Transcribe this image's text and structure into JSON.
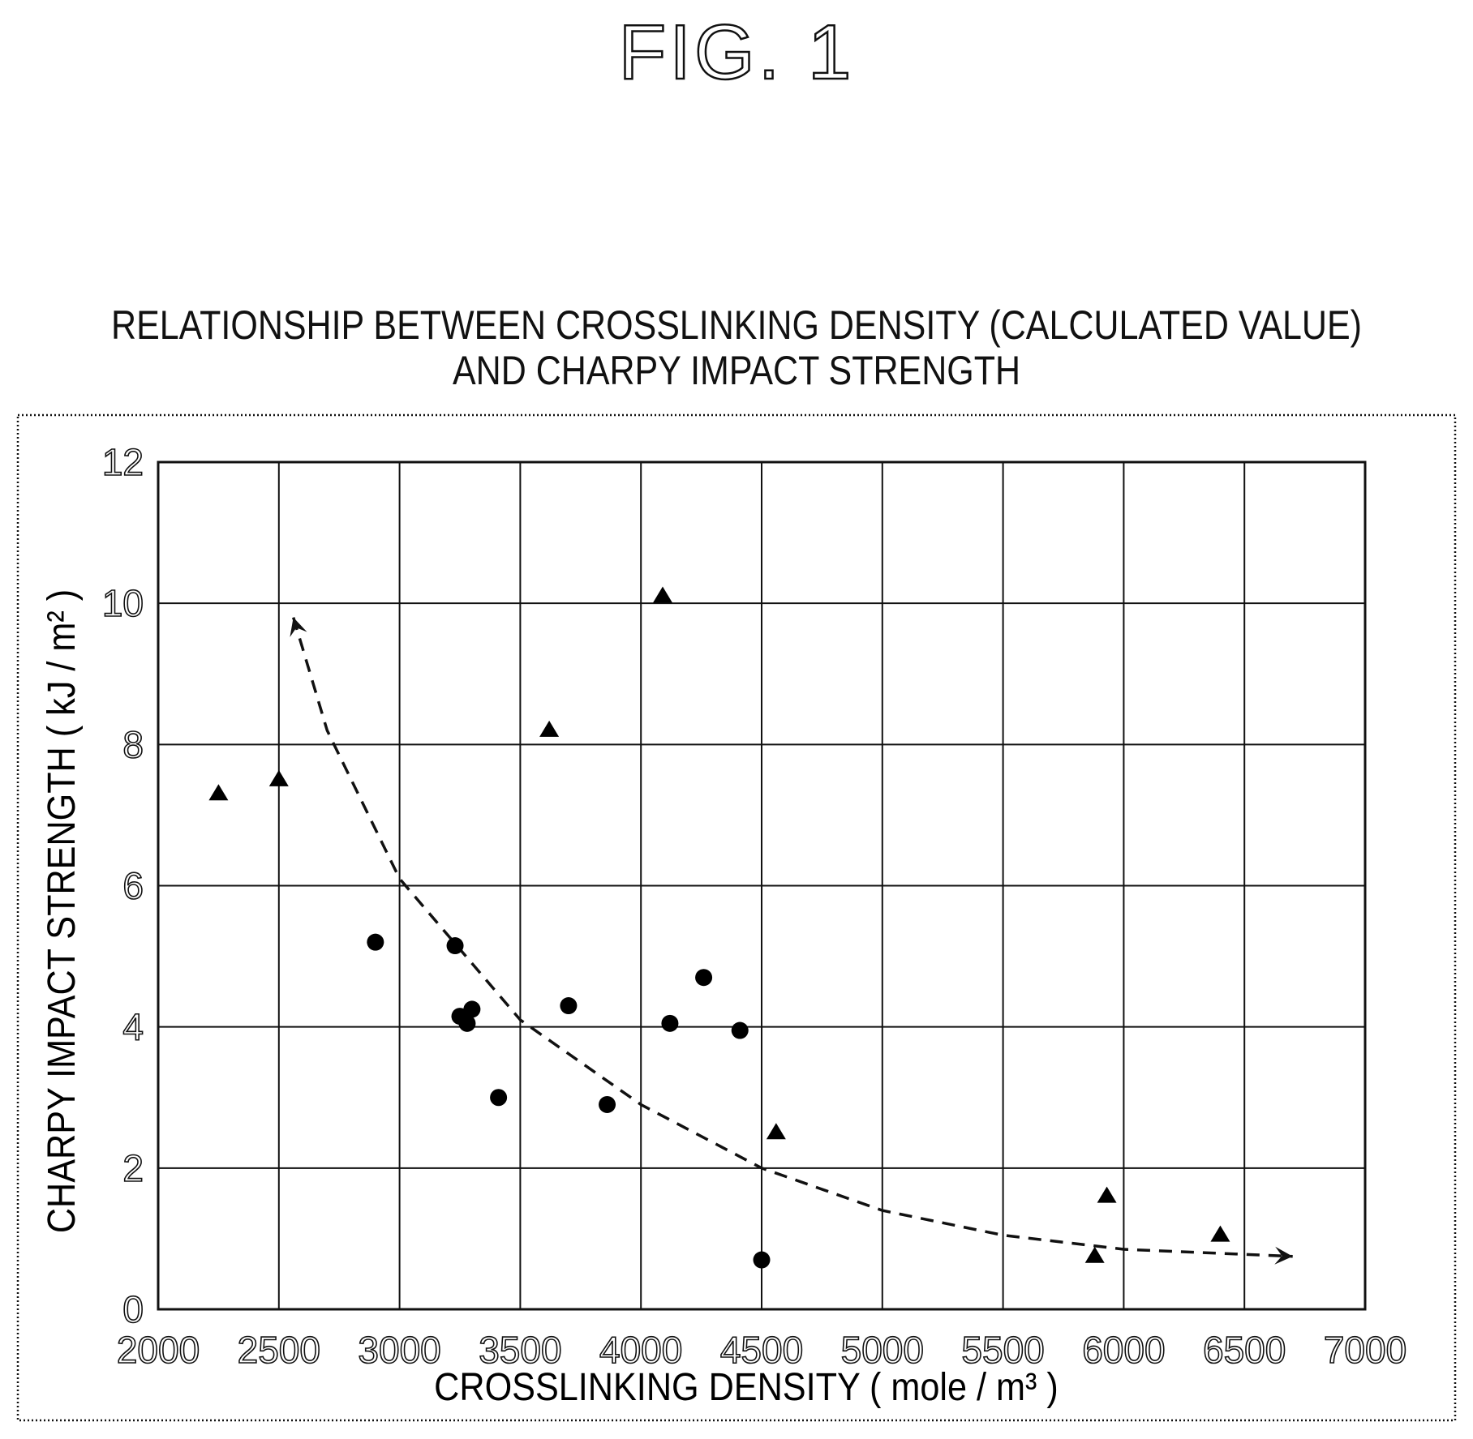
{
  "figure_label": "FIG. 1",
  "chart_data": {
    "type": "scatter",
    "title": "RELATIONSHIP BETWEEN CROSSLINKING DENSITY (CALCULATED VALUE)",
    "subtitle": "AND CHARPY IMPACT STRENGTH",
    "xlabel": "CROSSLINKING DENSITY ( mole / m³ )",
    "ylabel": "CHARPY IMPACT STRENGTH ( kJ / m² )",
    "xlim": [
      2000,
      7000
    ],
    "ylim": [
      0,
      12
    ],
    "x_ticks": [
      "2000",
      "2500",
      "3000",
      "3500",
      "4000",
      "4500",
      "5000",
      "5500",
      "6000",
      "6500",
      "7000"
    ],
    "y_ticks": [
      "0",
      "2",
      "4",
      "6",
      "8",
      "10",
      "12"
    ],
    "grid": true,
    "legend": "none",
    "series": [
      {
        "marker": "triangle",
        "color": "#000000",
        "points": [
          {
            "x": 2250,
            "y": 7.3
          },
          {
            "x": 2500,
            "y": 7.5
          },
          {
            "x": 3620,
            "y": 8.2
          },
          {
            "x": 4090,
            "y": 10.1
          },
          {
            "x": 4560,
            "y": 2.5
          },
          {
            "x": 5880,
            "y": 0.75
          },
          {
            "x": 5930,
            "y": 1.6
          },
          {
            "x": 6400,
            "y": 1.05
          }
        ]
      },
      {
        "marker": "circle",
        "color": "#000000",
        "points": [
          {
            "x": 2900,
            "y": 5.2
          },
          {
            "x": 3230,
            "y": 5.15
          },
          {
            "x": 3250,
            "y": 4.15
          },
          {
            "x": 3280,
            "y": 4.05
          },
          {
            "x": 3300,
            "y": 4.25
          },
          {
            "x": 3410,
            "y": 3.0
          },
          {
            "x": 3700,
            "y": 4.3
          },
          {
            "x": 3860,
            "y": 2.9
          },
          {
            "x": 4120,
            "y": 4.05
          },
          {
            "x": 4260,
            "y": 4.7
          },
          {
            "x": 4410,
            "y": 3.95
          },
          {
            "x": 4500,
            "y": 0.7
          }
        ]
      }
    ],
    "trend_curve": {
      "style": "dashed",
      "arrows": "both-ends",
      "points": [
        {
          "x": 2560,
          "y": 9.8
        },
        {
          "x": 2700,
          "y": 8.2
        },
        {
          "x": 3000,
          "y": 6.1
        },
        {
          "x": 3500,
          "y": 4.1
        },
        {
          "x": 4000,
          "y": 2.9
        },
        {
          "x": 4500,
          "y": 2.0
        },
        {
          "x": 5000,
          "y": 1.4
        },
        {
          "x": 5500,
          "y": 1.05
        },
        {
          "x": 6000,
          "y": 0.85
        },
        {
          "x": 6700,
          "y": 0.75
        }
      ]
    }
  }
}
